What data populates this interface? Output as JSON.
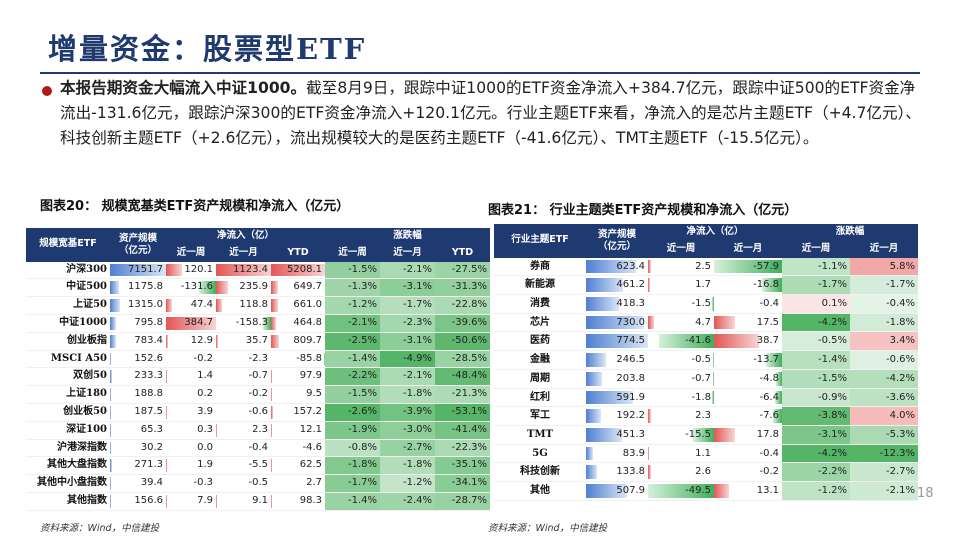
{
  "title": "增量资金：股票型ETF",
  "paragraph": {
    "bold": "本报告期资金大幅流入中证1000。",
    "text": "截至8月9日，跟踪中证1000的ETF资金净流入+384.7亿元，跟踪中证500的ETF资金净流出-131.6亿元，跟踪沪深300的ETF资金净流入+120.1亿元。行业主题ETF来看，净流入的是芯片主题ETF（+4.7亿元）、科技创新主题ETF（+2.6亿元），流出规模较大的是医药主题ETF（-41.6亿元）、TMT主题ETF（-15.5亿元）。"
  },
  "caption1": "图表20： 规模宽基类ETF资产规模和净流入（亿元）",
  "caption2": "图表21： 行业主题类ETF资产规模和净流入（亿元）",
  "table1": {
    "headers": [
      "规模宽基ETF",
      "资产规模（亿元）",
      "近一周",
      "近一月",
      "YTD",
      "近一周",
      "近一月",
      "YTD"
    ],
    "group_headers": [
      "净流入（亿）",
      "涨跌幅"
    ],
    "rows": [
      [
        "沪深300",
        "7151.7",
        "120.1",
        "1123.4",
        "5208.1",
        "-1.5%",
        "-2.1%",
        "-27.5%"
      ],
      [
        "中证500",
        "1175.8",
        "-131.6",
        "235.9",
        "649.7",
        "-1.3%",
        "-3.1%",
        "-31.3%"
      ],
      [
        "上证50",
        "1315.0",
        "47.4",
        "118.8",
        "661.0",
        "-1.2%",
        "-1.7%",
        "-22.8%"
      ],
      [
        "中证1000",
        "795.8",
        "384.7",
        "-158.3",
        "464.8",
        "-2.1%",
        "-2.3%",
        "-39.6%"
      ],
      [
        "创业板指",
        "783.4",
        "12.9",
        "35.7",
        "809.7",
        "-2.5%",
        "-3.1%",
        "-50.6%"
      ],
      [
        "MSCI A50",
        "152.6",
        "-0.2",
        "-2.3",
        "-85.8",
        "-1.4%",
        "-4.9%",
        "-28.5%"
      ],
      [
        "双创50",
        "233.3",
        "1.4",
        "-0.7",
        "97.9",
        "-2.2%",
        "-2.1%",
        "-48.4%"
      ],
      [
        "上证180",
        "188.8",
        "0.2",
        "-0.2",
        "9.5",
        "-1.5%",
        "-1.8%",
        "-21.3%"
      ],
      [
        "创业板50",
        "187.5",
        "3.9",
        "-0.6",
        "157.2",
        "-2.6%",
        "-3.9%",
        "-53.1%"
      ],
      [
        "深证100",
        "65.3",
        "0.3",
        "2.3",
        "12.1",
        "-1.9%",
        "-3.0%",
        "-41.4%"
      ],
      [
        "沪港深指数",
        "30.2",
        "0.0",
        "-0.4",
        "-4.6",
        "-0.8%",
        "-2.7%",
        "-22.3%"
      ],
      [
        "其他大盘指数",
        "271.3",
        "1.9",
        "-5.5",
        "62.5",
        "-1.8%",
        "-1.8%",
        "-35.1%"
      ],
      [
        "其他中小盘指数",
        "39.4",
        "-0.3",
        "-0.5",
        "2.7",
        "-1.7%",
        "-1.2%",
        "-34.1%"
      ],
      [
        "其他指数",
        "156.6",
        "7.9",
        "9.1",
        "98.3",
        "-1.4%",
        "-2.4%",
        "-28.7%"
      ]
    ]
  },
  "table2": {
    "headers": [
      "行业主题ETF",
      "资产规模（亿元）",
      "近一周",
      "近一月",
      "近一周",
      "近一月"
    ],
    "group_headers": [
      "净流入（亿）",
      "涨跌幅"
    ],
    "rows": [
      [
        "券商",
        "623.4",
        "2.5",
        "-57.9",
        "-1.1%",
        "5.8%"
      ],
      [
        "新能源",
        "461.2",
        "1.7",
        "-16.8",
        "-1.7%",
        "-1.7%"
      ],
      [
        "消费",
        "418.3",
        "-1.5",
        "-0.4",
        "0.1%",
        "-0.4%"
      ],
      [
        "芯片",
        "730.0",
        "4.7",
        "17.5",
        "-4.2%",
        "-1.8%"
      ],
      [
        "医药",
        "774.5",
        "-41.6",
        "38.7",
        "-0.5%",
        "3.4%"
      ],
      [
        "金融",
        "246.5",
        "-0.5",
        "-13.7",
        "-1.4%",
        "-0.6%"
      ],
      [
        "周期",
        "203.8",
        "-0.7",
        "-4.8",
        "-1.5%",
        "-4.2%"
      ],
      [
        "红利",
        "591.9",
        "-1.8",
        "-6.4",
        "-0.9%",
        "-3.6%"
      ],
      [
        "军工",
        "192.2",
        "2.3",
        "-7.6",
        "-3.8%",
        "4.0%"
      ],
      [
        "TMT",
        "451.3",
        "-15.5",
        "17.8",
        "-3.1%",
        "-5.3%"
      ],
      [
        "5G",
        "83.9",
        "1.1",
        "-0.4",
        "-4.2%",
        "-12.3%"
      ],
      [
        "科技创新",
        "133.8",
        "2.6",
        "-0.2",
        "-2.2%",
        "-2.7%"
      ],
      [
        "其他",
        "507.9",
        "-49.5",
        "13.1",
        "-1.2%",
        "-2.1%"
      ]
    ]
  },
  "page_number": "18",
  "source1": "资料来源：Wind，中信建投",
  "source2": "资料来源：Wind，中信建投"
}
